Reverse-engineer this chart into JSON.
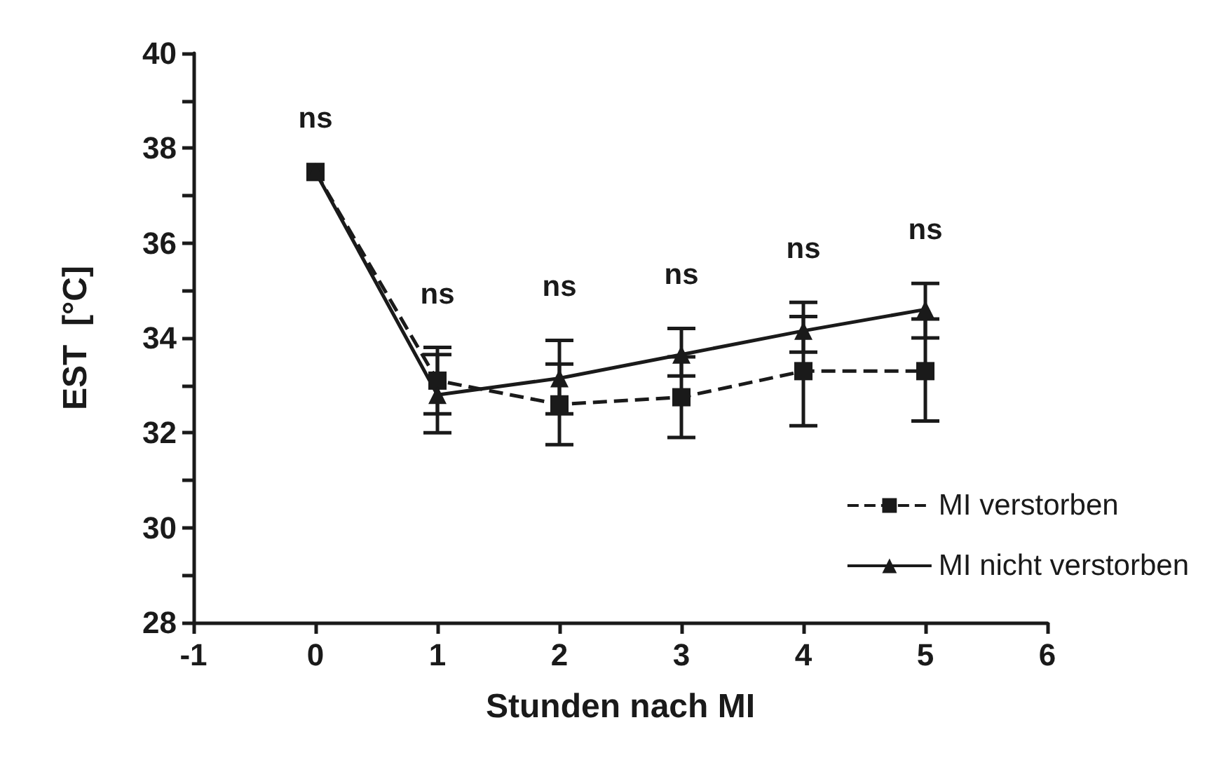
{
  "chart_data": {
    "type": "line",
    "xlabel": "Stunden nach MI",
    "ylabel": "EST  [°C]",
    "x": [
      0,
      1,
      2,
      3,
      4,
      5
    ],
    "xlim": [
      -1,
      6
    ],
    "xticks": [
      -1,
      0,
      1,
      2,
      3,
      4,
      5,
      6
    ],
    "ylim": [
      28,
      40
    ],
    "yticks": [
      28,
      {
        "value": 29,
        "label": null
      },
      30,
      {
        "value": 31,
        "label": null
      },
      32,
      {
        "value": 33,
        "label": null
      },
      34,
      {
        "value": 35,
        "label": null
      },
      36,
      {
        "value": 37,
        "label": null
      },
      38,
      {
        "value": 39,
        "label": null
      },
      40
    ],
    "grid": false,
    "legend": "bottom right",
    "series": [
      {
        "name": "MI verstorben",
        "color": "#1a1a1a",
        "marker": "square",
        "line_style": "dashed",
        "values": [
          37.5,
          33.1,
          32.6,
          32.75,
          33.3,
          33.3
        ],
        "errors": [
          null,
          [
            32.0,
            33.8
          ],
          [
            31.75,
            33.45
          ],
          [
            31.9,
            33.6
          ],
          [
            32.15,
            34.45
          ],
          [
            32.25,
            34.4
          ]
        ]
      },
      {
        "name": "MI nicht verstorben",
        "color": "#1a1a1a",
        "marker": "triangle",
        "line_style": "solid",
        "values": [
          37.5,
          32.8,
          33.15,
          33.65,
          34.15,
          34.6
        ],
        "errors": [
          null,
          [
            32.4,
            33.65
          ],
          [
            32.4,
            33.95
          ],
          [
            33.2,
            34.2
          ],
          [
            33.7,
            34.75
          ],
          [
            34.0,
            35.15
          ]
        ]
      }
    ],
    "annotations": [
      "ns",
      "ns",
      "ns",
      "ns",
      "ns",
      "ns"
    ]
  }
}
